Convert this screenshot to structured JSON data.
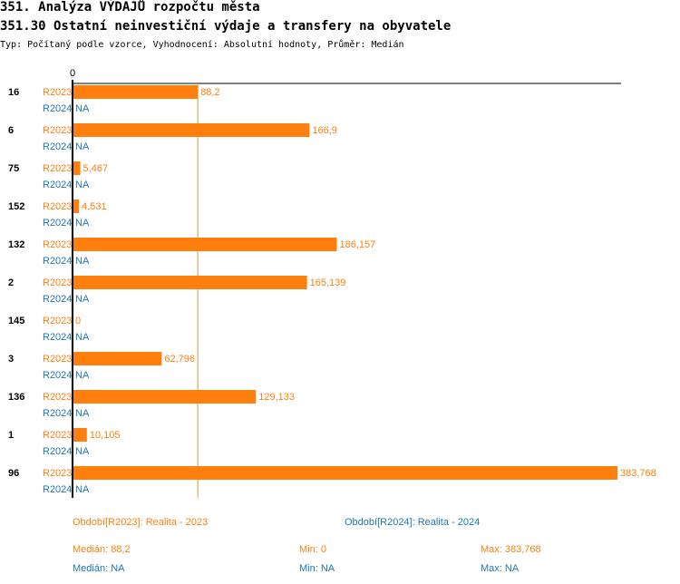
{
  "header": {
    "title": "351. Analýza VÝDAJŮ rozpočtu města",
    "subtitle": "351.30 Ostatní neinvestiční výdaje a transfery na obyvatele",
    "meta": "Typ: Počítaný podle vzorce, Vyhodnocení: Absolutní hodnoty, Průměr: Medián"
  },
  "colors": {
    "r2023": "#ff7f0e",
    "r2024": "#1f77b4",
    "axis": "#000000",
    "median_line": "#c8a040"
  },
  "chart_data": {
    "type": "bar",
    "orientation": "horizontal",
    "axis_zero_label": "0",
    "xlim": [
      0,
      383.768
    ],
    "median_value": 88.2,
    "categories": [
      "16",
      "6",
      "75",
      "152",
      "132",
      "2",
      "145",
      "3",
      "136",
      "1",
      "96"
    ],
    "series": [
      {
        "name": "R2023",
        "values": [
          88.2,
          166.9,
          5.467,
          4.531,
          186.157,
          165.139,
          0,
          62.796,
          129.133,
          10.105,
          383.768
        ],
        "labels": [
          "88,2",
          "166,9",
          "5,467",
          "4,531",
          "186,157",
          "165,139",
          "0",
          "62,796",
          "129,133",
          "10,105",
          "383,768"
        ]
      },
      {
        "name": "R2024",
        "values": [
          null,
          null,
          null,
          null,
          null,
          null,
          null,
          null,
          null,
          null,
          null
        ],
        "labels": [
          "NA",
          "NA",
          "NA",
          "NA",
          "NA",
          "NA",
          "NA",
          "NA",
          "NA",
          "NA",
          "NA"
        ]
      }
    ]
  },
  "legend": {
    "r2023": "Období[R2023]: Realita - 2023",
    "r2024": "Období[R2024]: Realita - 2024"
  },
  "stats": {
    "r2023": {
      "median": "Medián: 88,2",
      "min": "Min: 0",
      "max": "Max: 383,768"
    },
    "r2024": {
      "median": "Medián: NA",
      "min": "Min: NA",
      "max": "Max: NA"
    }
  }
}
